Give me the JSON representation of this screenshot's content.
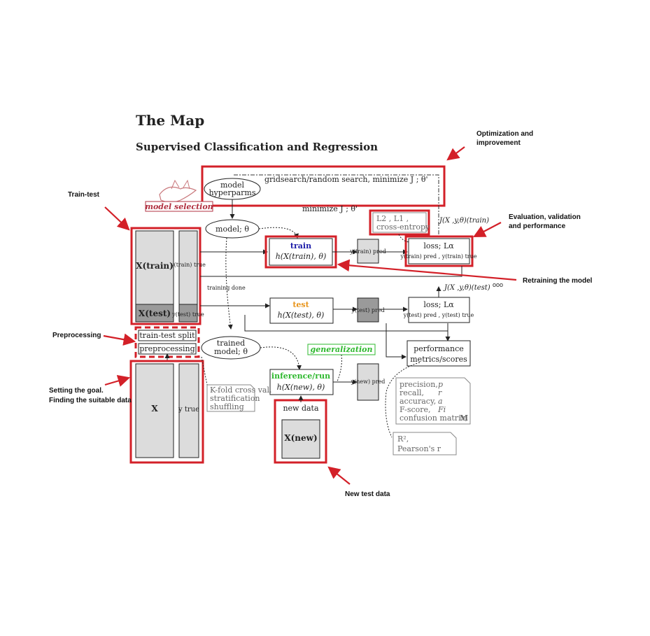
{
  "title": "The Map",
  "subtitle": "Supervised Classification and Regression",
  "nodes": {
    "model_hyperparams_1": "model",
    "model_hyperparams_2": "hyperparms",
    "gridsearch": "gridsearch/random search, minimize  J ; θ'",
    "minimize": "minimize  J ;  θ'",
    "model_selection": "model selection",
    "model_theta": "model; θ",
    "train_label": "train",
    "train_func": "h(X(train), θ)",
    "ypred_train": "y(train) pred",
    "loss_train_1": "loss; Lα",
    "loss_train_2": "y(train) pred , y(train) true",
    "loss_options_1": "L2 , L1 ,",
    "loss_options_2": "cross-entropy",
    "J_train": "J(X ,y,θ)(train)",
    "J_test": "J(X ,y,θ)(test)",
    "ooo": "ooo",
    "X_train": "X(train)",
    "y_train": "y(train) true",
    "X_test": "X(test)",
    "y_test": "y(test) true",
    "training_done": "training done",
    "test_label": "test",
    "test_func": "h(X(test), θ)",
    "ypred_test": "y(test) pred",
    "loss_test_1": "loss; Lα",
    "loss_test_2": "y(test) pred , y(test) true",
    "train_test_split": "train-test split",
    "preprocessing": "preprocessing",
    "trained_model_1": "trained",
    "trained_model_2": "model; θ",
    "generalization": "generalization",
    "performance_1": "performance",
    "performance_2": "metrics/scores",
    "inference_label": "inference/run",
    "inference_func": "h(X(new), θ)",
    "ypred_new": "y(new) pred",
    "new_data": "new data",
    "X_new": "X(new)",
    "X": "X",
    "y_true": "y true",
    "kfold_1": "K-fold cross val.",
    "kfold_2": "stratification",
    "kfold_3": "shuffling",
    "metrics": [
      {
        "name": "precision,",
        "sym": "p"
      },
      {
        "name": "recall,",
        "sym": "r"
      },
      {
        "name": "accuracy,",
        "sym": "a"
      },
      {
        "name": "F-score,",
        "sym": "Fi"
      },
      {
        "name": "confusion matrix,",
        "sym": "M"
      }
    ],
    "r2_1": "R²,",
    "r2_2": "Pearson's r"
  },
  "annotations": {
    "optimization": [
      "Optimization and",
      "improvement"
    ],
    "train_test": "Train-test",
    "evaluation": [
      "Evaluation, validation",
      "and performance"
    ],
    "retraining": "Retraining the model",
    "preprocessing": "Preprocessing",
    "goal": [
      "Setting the goal.",
      "Finding the suitable data"
    ],
    "new_test": "New test data"
  },
  "colors": {
    "highlight": "#d32028",
    "train": "#1a1aa8",
    "test": "#e8941a",
    "inference": "#2db82d",
    "model_selection": "#b03040"
  }
}
